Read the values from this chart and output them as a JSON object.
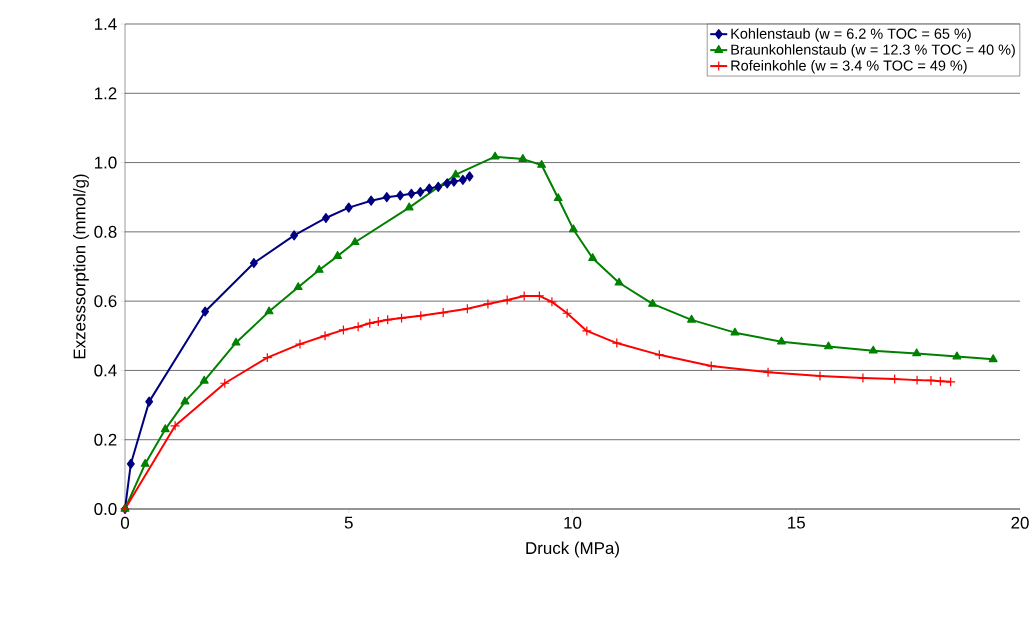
{
  "chart_data": {
    "type": "line",
    "xlabel": "Druck (MPa)",
    "ylabel": "Exzesssorption (mmol/g)",
    "xlim": [
      0,
      20
    ],
    "ylim": [
      0,
      1.4
    ],
    "xticks": [
      0,
      5,
      10,
      15,
      20
    ],
    "yticks": [
      {
        "value": 0,
        "label": "0.0"
      },
      {
        "value": 0.2,
        "label": "0.2"
      },
      {
        "value": 0.4,
        "label": "0.4"
      },
      {
        "value": 0.6,
        "label": "0.6"
      },
      {
        "value": 0.8,
        "label": "0.8"
      },
      {
        "value": 1.0,
        "label": "1.0"
      },
      {
        "value": 1.2,
        "label": "1.2"
      },
      {
        "value": 1.4,
        "label": "1.4"
      }
    ],
    "grid": "y",
    "legend": "top right",
    "line_style": "solid",
    "series": [
      {
        "name": "Kohlenstaub (w = 6.2 % TOC = 65 %)",
        "color": "#000080",
        "marker": "diamond",
        "x": [
          0,
          0.13,
          0.54,
          1.79,
          2.88,
          3.78,
          4.49,
          5.0,
          5.5,
          5.85,
          6.15,
          6.4,
          6.6,
          6.8,
          7.0,
          7.2,
          7.35,
          7.55,
          7.7
        ],
        "values": [
          0,
          0.13,
          0.31,
          0.57,
          0.71,
          0.79,
          0.84,
          0.87,
          0.89,
          0.9,
          0.905,
          0.91,
          0.915,
          0.925,
          0.93,
          0.94,
          0.945,
          0.95,
          0.96
        ]
      },
      {
        "name": "Braunkohlenstaub (w = 12.3 % TOC = 40 %)",
        "color": "#008000",
        "marker": "triangle",
        "x": [
          0,
          0.45,
          0.9,
          1.34,
          1.77,
          2.48,
          3.22,
          3.87,
          4.34,
          4.75,
          5.14,
          6.35,
          7.39,
          8.27,
          8.89,
          9.31,
          9.68,
          10.02,
          10.45,
          11.04,
          11.79,
          12.66,
          13.63,
          14.67,
          15.72,
          16.72,
          17.69,
          18.59,
          19.4
        ],
        "values": [
          0,
          0.13,
          0.23,
          0.31,
          0.37,
          0.48,
          0.57,
          0.64,
          0.69,
          0.73,
          0.77,
          0.87,
          0.965,
          1.017,
          1.01,
          0.993,
          0.897,
          0.807,
          0.724,
          0.653,
          0.592,
          0.546,
          0.509,
          0.483,
          0.469,
          0.457,
          0.449,
          0.44,
          0.432
        ]
      },
      {
        "name": "Rofeinkohle (w = 3.4 % TOC = 49 %)",
        "color": "#ff0000",
        "marker": "cross",
        "x": [
          0,
          1.12,
          2.23,
          3.18,
          3.91,
          4.47,
          4.88,
          5.21,
          5.47,
          5.66,
          5.87,
          6.18,
          6.61,
          7.11,
          7.65,
          8.11,
          8.54,
          8.92,
          9.26,
          9.54,
          9.88,
          10.32,
          10.99,
          11.94,
          13.1,
          14.37,
          15.53,
          16.49,
          17.2,
          17.7,
          18.01,
          18.22,
          18.45
        ],
        "values": [
          0,
          0.24,
          0.363,
          0.437,
          0.476,
          0.5,
          0.517,
          0.526,
          0.536,
          0.541,
          0.546,
          0.551,
          0.558,
          0.567,
          0.578,
          0.592,
          0.603,
          0.615,
          0.615,
          0.598,
          0.565,
          0.514,
          0.479,
          0.445,
          0.413,
          0.395,
          0.384,
          0.378,
          0.375,
          0.372,
          0.371,
          0.369,
          0.367
        ]
      }
    ]
  }
}
